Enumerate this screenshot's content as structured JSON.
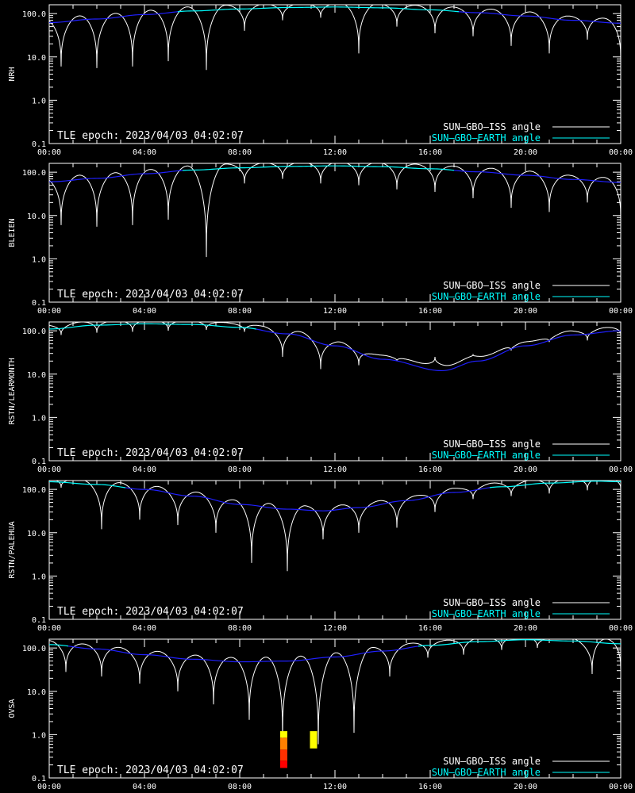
{
  "chart_data": [
    {
      "type": "line",
      "ylabel": "NRH",
      "annotation": "TLE epoch: 2023/04/03 04:02:07",
      "x_ticks": [
        "00:00",
        "04:00",
        "08:00",
        "12:00",
        "16:00",
        "20:00",
        "00:00"
      ],
      "y_ticks": [
        "0.1",
        "1.0",
        "10.0",
        "100.0"
      ],
      "y_scale": "log",
      "ylim": [
        0.1,
        160
      ],
      "xlim_hours": [
        0,
        24
      ],
      "legend_placement": "bottom-right",
      "series": [
        {
          "name": "SUN—GBO—ISS angle",
          "color": "#ffffff",
          "dips": [
            [
              0.5,
              6
            ],
            [
              2.0,
              5.5
            ],
            [
              3.5,
              6
            ],
            [
              5.0,
              8
            ],
            [
              6.6,
              5
            ],
            [
              8.2,
              40
            ],
            [
              9.8,
              70
            ],
            [
              11.4,
              80
            ],
            [
              13.0,
              12
            ],
            [
              14.6,
              50
            ],
            [
              16.2,
              35
            ],
            [
              17.8,
              30
            ],
            [
              19.4,
              18
            ],
            [
              21.0,
              12
            ],
            [
              22.6,
              25
            ],
            [
              24.0,
              8
            ]
          ]
        },
        {
          "name": "SUN—GBO—EARTH angle",
          "color": "#00ffff",
          "low_color": "#2020ff",
          "points": [
            [
              0,
              62
            ],
            [
              2,
              75
            ],
            [
              4,
              95
            ],
            [
              6,
              115
            ],
            [
              8,
              128
            ],
            [
              10,
              138
            ],
            [
              12,
              142
            ],
            [
              14,
              136
            ],
            [
              16,
              122
            ],
            [
              18,
              105
            ],
            [
              20,
              88
            ],
            [
              22,
              70
            ],
            [
              24,
              60
            ]
          ]
        }
      ]
    },
    {
      "type": "line",
      "ylabel": "BLEIEN",
      "annotation": "TLE epoch: 2023/04/03 04:02:07",
      "x_ticks": [
        "00:00",
        "04:00",
        "08:00",
        "12:00",
        "16:00",
        "20:00",
        "00:00"
      ],
      "y_ticks": [
        "0.1",
        "1.0",
        "10.0",
        "100.0"
      ],
      "y_scale": "log",
      "ylim": [
        0.1,
        160
      ],
      "xlim_hours": [
        0,
        24
      ],
      "legend_placement": "bottom-right",
      "series": [
        {
          "name": "SUN—GBO—ISS angle",
          "color": "#ffffff",
          "dips": [
            [
              0.5,
              6
            ],
            [
              2.0,
              5.5
            ],
            [
              3.5,
              6
            ],
            [
              5.0,
              8
            ],
            [
              6.6,
              1.1
            ],
            [
              8.2,
              55
            ],
            [
              9.8,
              70
            ],
            [
              11.4,
              55
            ],
            [
              13.0,
              50
            ],
            [
              14.6,
              40
            ],
            [
              16.2,
              35
            ],
            [
              17.8,
              25
            ],
            [
              19.4,
              15
            ],
            [
              21.0,
              12
            ],
            [
              22.6,
              20
            ],
            [
              24.0,
              8
            ]
          ]
        },
        {
          "name": "SUN—GBO—EARTH angle",
          "color": "#00ffff",
          "low_color": "#2020ff",
          "points": [
            [
              0,
              60
            ],
            [
              2,
              72
            ],
            [
              4,
              92
            ],
            [
              6,
              112
            ],
            [
              8,
              126
            ],
            [
              10,
              136
            ],
            [
              12,
              140
            ],
            [
              14,
              134
            ],
            [
              16,
              120
            ],
            [
              18,
              102
            ],
            [
              20,
              85
            ],
            [
              22,
              68
            ],
            [
              24,
              58
            ]
          ]
        }
      ]
    },
    {
      "type": "line",
      "ylabel": "RSTN/LEARMONTH",
      "annotation": "TLE epoch: 2023/04/03 04:02:07",
      "x_ticks": [
        "00:00",
        "04:00",
        "08:00",
        "12:00",
        "16:00",
        "20:00",
        "00:00"
      ],
      "y_ticks": [
        "0.1",
        "1.0",
        "10.0",
        "100.0"
      ],
      "y_scale": "log",
      "ylim": [
        0.1,
        160
      ],
      "xlim_hours": [
        0,
        24
      ],
      "legend_placement": "bottom-right",
      "series": [
        {
          "name": "SUN—GBO—ISS angle",
          "color": "#ffffff",
          "dips": [
            [
              0.5,
              80
            ],
            [
              2.0,
              90
            ],
            [
              3.5,
              95
            ],
            [
              5.0,
              100
            ],
            [
              6.6,
              105
            ],
            [
              8.2,
              95
            ],
            [
              9.8,
              25
            ],
            [
              11.4,
              13
            ],
            [
              13.0,
              16
            ],
            [
              14.6,
              20
            ],
            [
              16.2,
              25
            ],
            [
              17.8,
              28
            ],
            [
              19.4,
              35
            ],
            [
              21.0,
              55
            ],
            [
              22.6,
              60
            ],
            [
              24.0,
              80
            ]
          ]
        },
        {
          "name": "SUN—GBO—EARTH angle",
          "color": "#00ffff",
          "low_color": "#2020ff",
          "points": [
            [
              0,
              110
            ],
            [
              2,
              135
            ],
            [
              4,
              145
            ],
            [
              6,
              140
            ],
            [
              8,
              120
            ],
            [
              10,
              85
            ],
            [
              12,
              45
            ],
            [
              14,
              22
            ],
            [
              16.5,
              12
            ],
            [
              18,
              20
            ],
            [
              20,
              45
            ],
            [
              22,
              80
            ],
            [
              24,
              100
            ]
          ]
        }
      ]
    },
    {
      "type": "line",
      "ylabel": "RSTN/PALEHUA",
      "annotation": "TLE epoch: 2023/04/03 04:02:07",
      "x_ticks": [
        "00:00",
        "04:00",
        "08:00",
        "12:00",
        "16:00",
        "20:00",
        "00:00"
      ],
      "y_ticks": [
        "0.1",
        "1.0",
        "10.0",
        "100.0"
      ],
      "y_scale": "log",
      "ylim": [
        0.1,
        160
      ],
      "xlim_hours": [
        0,
        24
      ],
      "legend_placement": "bottom-right",
      "series": [
        {
          "name": "SUN—GBO—ISS angle",
          "color": "#ffffff",
          "dips": [
            [
              0.5,
              110
            ],
            [
              2.2,
              12
            ],
            [
              3.8,
              20
            ],
            [
              5.4,
              15
            ],
            [
              7.0,
              10
            ],
            [
              8.5,
              2
            ],
            [
              10.0,
              1.3
            ],
            [
              11.5,
              7
            ],
            [
              13.0,
              10
            ],
            [
              14.6,
              13
            ],
            [
              16.2,
              30
            ],
            [
              17.8,
              60
            ],
            [
              19.4,
              70
            ],
            [
              21.0,
              80
            ],
            [
              22.6,
              95
            ],
            [
              24.0,
              100
            ]
          ]
        },
        {
          "name": "SUN—GBO—EARTH angle",
          "color": "#00ffff",
          "low_color": "#2020ff",
          "points": [
            [
              0,
              150
            ],
            [
              2,
              130
            ],
            [
              4,
              100
            ],
            [
              6,
              70
            ],
            [
              8,
              45
            ],
            [
              10,
              35
            ],
            [
              11.5,
              32
            ],
            [
              13,
              38
            ],
            [
              15,
              55
            ],
            [
              17,
              85
            ],
            [
              19,
              115
            ],
            [
              21,
              140
            ],
            [
              23,
              155
            ],
            [
              24,
              150
            ]
          ]
        }
      ]
    },
    {
      "type": "line",
      "ylabel": "OVSA",
      "annotation": "TLE epoch: 2023/04/03 04:02:07",
      "x_ticks": [
        "00:00",
        "04:00",
        "08:00",
        "12:00",
        "16:00",
        "20:00",
        "00:00"
      ],
      "y_ticks": [
        "0.1",
        "1.0",
        "10.0",
        "100.0"
      ],
      "y_scale": "log",
      "ylim": [
        0.1,
        160
      ],
      "xlim_hours": [
        0,
        24
      ],
      "legend_placement": "bottom-right",
      "series": [
        {
          "name": "SUN—GBO—ISS angle",
          "color": "#ffffff",
          "dips": [
            [
              0.7,
              28
            ],
            [
              2.2,
              22
            ],
            [
              3.8,
              15
            ],
            [
              5.4,
              10
            ],
            [
              6.9,
              5
            ],
            [
              8.4,
              2.2
            ],
            [
              9.8,
              0.8
            ],
            [
              11.3,
              0.6
            ],
            [
              12.8,
              1.1
            ],
            [
              14.3,
              22
            ],
            [
              15.9,
              60
            ],
            [
              17.4,
              70
            ],
            [
              19.0,
              90
            ],
            [
              20.5,
              100
            ],
            [
              22.8,
              25
            ],
            [
              24.0,
              30
            ]
          ]
        },
        {
          "name": "SUN—GBO—EARTH angle",
          "color": "#00ffff",
          "low_color": "#2020ff",
          "points": [
            [
              0,
              120
            ],
            [
              2,
              95
            ],
            [
              4,
              70
            ],
            [
              6,
              55
            ],
            [
              8,
              48
            ],
            [
              10,
              50
            ],
            [
              12,
              62
            ],
            [
              14,
              85
            ],
            [
              16,
              115
            ],
            [
              18,
              140
            ],
            [
              20,
              155
            ],
            [
              22,
              145
            ],
            [
              24,
              125
            ]
          ]
        }
      ],
      "markers": [
        {
          "hour": 9.85,
          "low": 0.85,
          "high": 1.2,
          "color": "#ffff00"
        },
        {
          "hour": 9.85,
          "low": 0.45,
          "high": 0.85,
          "color": "#ff8000"
        },
        {
          "hour": 9.85,
          "low": 0.25,
          "high": 0.45,
          "color": "#ff3000"
        },
        {
          "hour": 9.85,
          "low": 0.17,
          "high": 0.25,
          "color": "#ff0000"
        },
        {
          "hour": 11.1,
          "low": 0.48,
          "high": 1.2,
          "color": "#ffff00"
        }
      ]
    }
  ]
}
